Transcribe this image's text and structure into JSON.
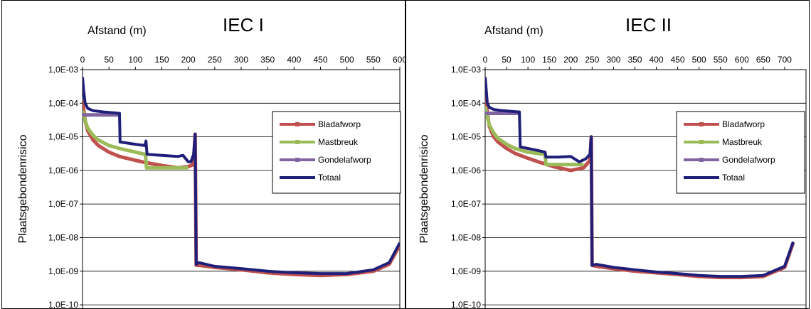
{
  "chart_data": [
    {
      "type": "line",
      "title": "IEC I",
      "xlabel": "Afstand (m)",
      "ylabel": "Plaatsgebondenrisico",
      "xlim": [
        0,
        600
      ],
      "ylim": [
        1e-10,
        0.001
      ],
      "yscale": "log",
      "x_ticks": [
        "0",
        "50",
        "100",
        "150",
        "200",
        "250",
        "300",
        "350",
        "400",
        "450",
        "500",
        "550",
        "600"
      ],
      "y_ticks": [
        "1,0E-03",
        "1,0E-04",
        "1,0E-05",
        "1,0E-06",
        "1,0E-07",
        "1,0E-08",
        "1,0E-09",
        "1,0E-10"
      ],
      "legend_position": "top-right",
      "grid": "horizontal",
      "series": [
        {
          "name": "Bladafworp",
          "color": "#c0504d",
          "x": [
            0,
            5,
            10,
            20,
            30,
            50,
            70,
            100,
            120,
            150,
            180,
            200,
            210,
            213,
            215,
            220,
            250,
            300,
            350,
            400,
            450,
            500,
            550,
            580,
            600
          ],
          "y": [
            0.00012,
            3e-05,
            1.5e-05,
            8e-06,
            5.5e-06,
            3.5e-06,
            2.6e-06,
            2e-06,
            1.7e-06,
            1.4e-06,
            1.2e-06,
            1.3e-06,
            1.5e-06,
            1.2e-05,
            1.5e-09,
            1.5e-09,
            1.3e-09,
            1.1e-09,
            9e-10,
            8e-10,
            7.5e-10,
            8e-10,
            1e-09,
            1.6e-09,
            6e-09
          ]
        },
        {
          "name": "Mastbreuk",
          "color": "#9bbb59",
          "x": [
            0,
            5,
            10,
            20,
            30,
            50,
            70,
            100,
            119,
            121,
            150,
            180,
            200
          ],
          "y": [
            6e-05,
            3e-05,
            1.8e-05,
            1.1e-05,
            8e-06,
            5.5e-06,
            4.5e-06,
            3.5e-06,
            3e-06,
            1.2e-06,
            1.2e-06,
            1.2e-06,
            1.2e-06
          ]
        },
        {
          "name": "Gondelafworp",
          "color": "#8064a2",
          "x": [
            0,
            5,
            10,
            70
          ],
          "y": [
            4.5e-05,
            4.5e-05,
            4.5e-05,
            4.5e-05
          ]
        },
        {
          "name": "Totaal",
          "color": "#1f1f7a",
          "x": [
            0,
            2,
            5,
            10,
            20,
            40,
            69,
            70,
            71,
            100,
            118,
            120,
            122,
            150,
            180,
            190,
            200,
            205,
            210,
            213,
            215,
            220,
            250,
            300,
            350,
            400,
            450,
            500,
            550,
            580,
            600
          ],
          "y": [
            0.0006,
            0.00025,
            0.0001,
            7e-05,
            6e-05,
            5.5e-05,
            5e-05,
            5e-05,
            7e-06,
            6e-06,
            5.5e-06,
            7.5e-06,
            3e-06,
            2.8e-06,
            2.6e-06,
            2.8e-06,
            1.8e-06,
            1.8e-06,
            3e-06,
            1.2e-05,
            1.6e-09,
            1.8e-09,
            1.4e-09,
            1.2e-09,
            1e-09,
            9e-10,
            8.5e-10,
            8.5e-10,
            1.1e-09,
            1.8e-09,
            7e-09
          ]
        }
      ]
    },
    {
      "type": "line",
      "title": "IEC II",
      "xlabel": "Afstand (m)",
      "ylabel": "Plaatsgebondenrisico",
      "xlim": [
        0,
        750
      ],
      "ylim": [
        1e-10,
        0.001
      ],
      "yscale": "log",
      "x_ticks": [
        "0",
        "50",
        "100",
        "150",
        "200",
        "250",
        "300",
        "350",
        "400",
        "450",
        "500",
        "550",
        "600",
        "650",
        "700"
      ],
      "y_ticks": [
        "1,0E-03",
        "1,0E-04",
        "1,0E-05",
        "1,0E-06",
        "1,0E-07",
        "1,0E-08",
        "1,0E-09",
        "1,0E-10"
      ],
      "legend_position": "top-right",
      "grid": "horizontal",
      "series": [
        {
          "name": "Bladafworp",
          "color": "#c0504d",
          "x": [
            0,
            5,
            10,
            20,
            30,
            50,
            70,
            100,
            130,
            160,
            200,
            230,
            245,
            248,
            250,
            260,
            300,
            350,
            400,
            450,
            500,
            550,
            600,
            650,
            700,
            720
          ],
          "y": [
            0.0003,
            5e-05,
            2e-05,
            1e-05,
            7e-06,
            4.5e-06,
            3.2e-06,
            2.3e-06,
            1.7e-06,
            1.3e-06,
            1e-06,
            1.2e-06,
            2e-06,
            1e-05,
            1.5e-09,
            1.4e-09,
            1.2e-09,
            1e-09,
            9e-10,
            8e-10,
            7e-10,
            6.5e-10,
            6.5e-10,
            7e-10,
            1.3e-09,
            7e-09
          ]
        },
        {
          "name": "Mastbreuk",
          "color": "#9bbb59",
          "x": [
            0,
            5,
            10,
            20,
            30,
            50,
            70,
            100,
            140,
            142,
            170,
            200,
            230
          ],
          "y": [
            8e-05,
            4e-05,
            2.2e-05,
            1.3e-05,
            9e-06,
            6e-06,
            4.5e-06,
            3.5e-06,
            3e-06,
            1.5e-06,
            1.5e-06,
            1.5e-06,
            1.5e-06
          ]
        },
        {
          "name": "Gondelafworp",
          "color": "#8064a2",
          "x": [
            0,
            5,
            10,
            60,
            80
          ],
          "y": [
            5e-05,
            5e-05,
            5e-05,
            5e-05,
            5e-05
          ]
        },
        {
          "name": "Totaal",
          "color": "#1f1f7a",
          "x": [
            0,
            2,
            5,
            10,
            20,
            40,
            80,
            82,
            100,
            120,
            140,
            142,
            170,
            200,
            220,
            235,
            245,
            248,
            250,
            260,
            300,
            350,
            400,
            450,
            500,
            550,
            600,
            650,
            700,
            720
          ],
          "y": [
            0.0006,
            0.0003,
            0.0001,
            7.5e-05,
            6.5e-05,
            6e-05,
            5.5e-05,
            5e-06,
            4.5e-06,
            4e-06,
            3.5e-06,
            2.5e-06,
            2.5e-06,
            2.6e-06,
            1.8e-06,
            2.2e-06,
            3e-06,
            1e-05,
            1.5e-09,
            1.6e-09,
            1.3e-09,
            1.1e-09,
            9.5e-10,
            8.5e-10,
            7.5e-10,
            7e-10,
            7e-10,
            7.5e-10,
            1.4e-09,
            7.5e-09
          ]
        }
      ]
    }
  ]
}
